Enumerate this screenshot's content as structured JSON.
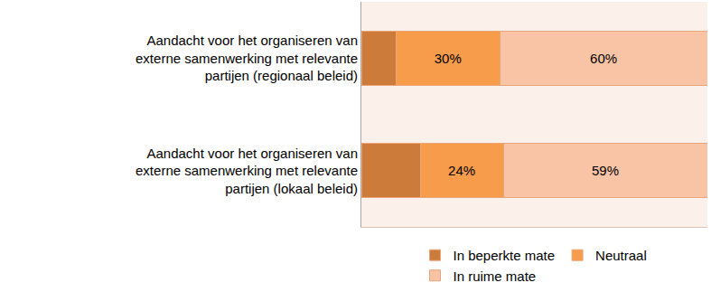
{
  "chart_data": {
    "type": "bar",
    "orientation": "horizontal",
    "stacked": true,
    "categories": [
      "Aandacht voor het organiseren van externe samenwerking met relevante partijen (regionaal beleid)",
      "Aandacht voor het organiseren van externe samenwerking met relevante partijen (lokaal beleid)"
    ],
    "series": [
      {
        "name": "In beperkte mate",
        "color": "#cd7b3b",
        "values": [
          10,
          17
        ],
        "value_labels": [
          null,
          null
        ]
      },
      {
        "name": "Neutraal",
        "color": "#f79c4a",
        "values": [
          30,
          24
        ],
        "value_labels": [
          "30%",
          "24%"
        ]
      },
      {
        "name": "In ruime mate",
        "color": "#f9c4a6",
        "values": [
          60,
          59
        ],
        "value_labels": [
          "60%",
          "59%"
        ]
      }
    ],
    "xlim": [
      0,
      100
    ],
    "tick_labels": false,
    "grid": false,
    "data_labels": true,
    "legend": "bottom"
  }
}
